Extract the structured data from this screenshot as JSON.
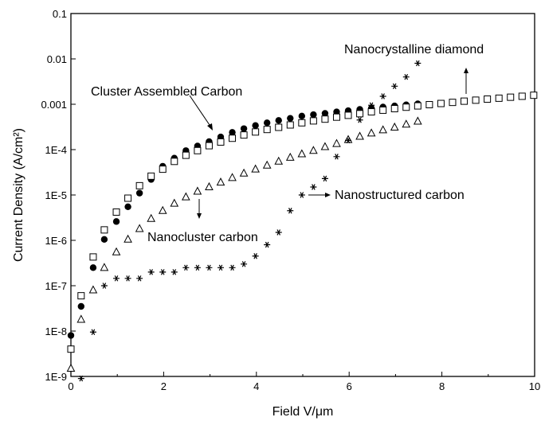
{
  "chart_data": {
    "type": "scatter",
    "xlabel": "Field V/μm",
    "ylabel": "Current Density (A/cm²)",
    "y_scale": "log",
    "xlim": [
      0,
      10
    ],
    "ylim": [
      1e-09,
      0.1
    ],
    "grid": false,
    "legend": "none",
    "x_ticks": [
      "0",
      "2",
      "4",
      "6",
      "8",
      "10"
    ],
    "y_ticks": [
      "1E-9",
      "1E-8",
      "1E-7",
      "1E-6",
      "1E-5",
      "1E-4",
      "0.001",
      "0.01",
      "0.1"
    ],
    "series": [
      {
        "marker": "filled-circle",
        "color": "#000000",
        "x": [
          0.0,
          0.22,
          0.48,
          0.72,
          0.98,
          1.23,
          1.48,
          1.73,
          1.98,
          2.23,
          2.48,
          2.73,
          2.98,
          3.23,
          3.48,
          3.73,
          3.98,
          4.23,
          4.48,
          4.73,
          4.98,
          5.23,
          5.48,
          5.73,
          5.98,
          6.23,
          6.48,
          6.73,
          6.98,
          7.23,
          7.48
        ],
        "y": [
          8e-09,
          3.5e-08,
          2.5e-07,
          1.05e-06,
          2.6e-06,
          5.5e-06,
          1.1e-05,
          2.2e-05,
          4.3e-05,
          6.5e-05,
          9.5e-05,
          0.00012,
          0.00015,
          0.00019,
          0.00024,
          0.00029,
          0.00034,
          0.00039,
          0.00044,
          0.00049,
          0.00055,
          0.00059,
          0.00063,
          0.00068,
          0.00072,
          0.00077,
          0.00082,
          0.00087,
          0.00092,
          0.00097,
          0.00102
        ]
      },
      {
        "marker": "open-square",
        "color": "#000000",
        "x": [
          0.0,
          0.22,
          0.48,
          0.72,
          0.98,
          1.23,
          1.48,
          1.73,
          1.98,
          2.23,
          2.48,
          2.73,
          2.98,
          3.23,
          3.48,
          3.73,
          3.98,
          4.23,
          4.48,
          4.73,
          4.98,
          5.23,
          5.48,
          5.73,
          5.98,
          6.23,
          6.48,
          6.73,
          6.98,
          7.23,
          7.48,
          7.73,
          7.98,
          8.23,
          8.48,
          8.73,
          8.98,
          9.23,
          9.48,
          9.73,
          9.98
        ],
        "y": [
          4e-09,
          6e-08,
          4.3e-07,
          1.7e-06,
          4.2e-06,
          8.5e-06,
          1.6e-05,
          2.6e-05,
          3.7e-05,
          5.5e-05,
          7.5e-05,
          9.5e-05,
          0.000122,
          0.000147,
          0.000178,
          0.00021,
          0.000245,
          0.000278,
          0.00031,
          0.00035,
          0.00039,
          0.00043,
          0.00047,
          0.00052,
          0.00057,
          0.00062,
          0.00068,
          0.00074,
          0.0008,
          0.00086,
          0.00092,
          0.00098,
          0.00104,
          0.0011,
          0.00117,
          0.00123,
          0.0013,
          0.00136,
          0.00143,
          0.0015,
          0.00158
        ]
      },
      {
        "marker": "open-triangle",
        "color": "#000000",
        "x": [
          0.0,
          0.22,
          0.48,
          0.72,
          0.98,
          1.23,
          1.48,
          1.73,
          1.98,
          2.23,
          2.48,
          2.73,
          2.98,
          3.23,
          3.48,
          3.73,
          3.98,
          4.23,
          4.48,
          4.73,
          4.98,
          5.23,
          5.48,
          5.73,
          5.98,
          6.23,
          6.48,
          6.73,
          6.98,
          7.23,
          7.48
        ],
        "y": [
          1.5e-09,
          1.8e-08,
          8e-08,
          2.5e-07,
          5.5e-07,
          1.05e-06,
          1.8e-06,
          3e-06,
          4.5e-06,
          6.5e-06,
          9e-06,
          1.2e-05,
          1.5e-05,
          1.9e-05,
          2.4e-05,
          3e-05,
          3.7e-05,
          4.5e-05,
          5.5e-05,
          6.7e-05,
          8e-05,
          9.5e-05,
          0.000115,
          0.000135,
          0.000165,
          0.000195,
          0.00023,
          0.00027,
          0.00031,
          0.00036,
          0.00042
        ]
      },
      {
        "marker": "asterisk",
        "color": "#000000",
        "x": [
          0.22,
          0.48,
          0.72,
          0.98,
          1.23,
          1.48,
          1.73,
          1.98,
          2.23,
          2.48,
          2.73,
          2.98,
          3.23,
          3.48,
          3.73,
          3.98,
          4.23,
          4.48,
          4.73,
          4.98,
          5.23,
          5.48,
          5.73,
          5.98,
          6.23,
          6.48,
          6.73,
          6.98,
          7.23,
          7.48
        ],
        "y": [
          9e-10,
          9.5e-09,
          1e-07,
          1.45e-07,
          1.45e-07,
          1.45e-07,
          2e-07,
          2e-07,
          2e-07,
          2.5e-07,
          2.5e-07,
          2.5e-07,
          2.5e-07,
          2.5e-07,
          3e-07,
          4.5e-07,
          8e-07,
          1.5e-06,
          4.5e-06,
          1e-05,
          1.5e-05,
          2.3e-05,
          7e-05,
          0.00016,
          0.00045,
          0.00095,
          0.0015,
          0.0025,
          0.004,
          0.008
        ]
      }
    ],
    "annotations": [
      {
        "text": "Nanocrystalline diamond",
        "pos": "top-right"
      },
      {
        "text": "Cluster Assembled Carbon",
        "pos": "upper-left"
      },
      {
        "text": "Nanostructured carbon",
        "pos": "middle-right"
      },
      {
        "text": "Nanocluster carbon",
        "pos": "middle"
      }
    ]
  }
}
